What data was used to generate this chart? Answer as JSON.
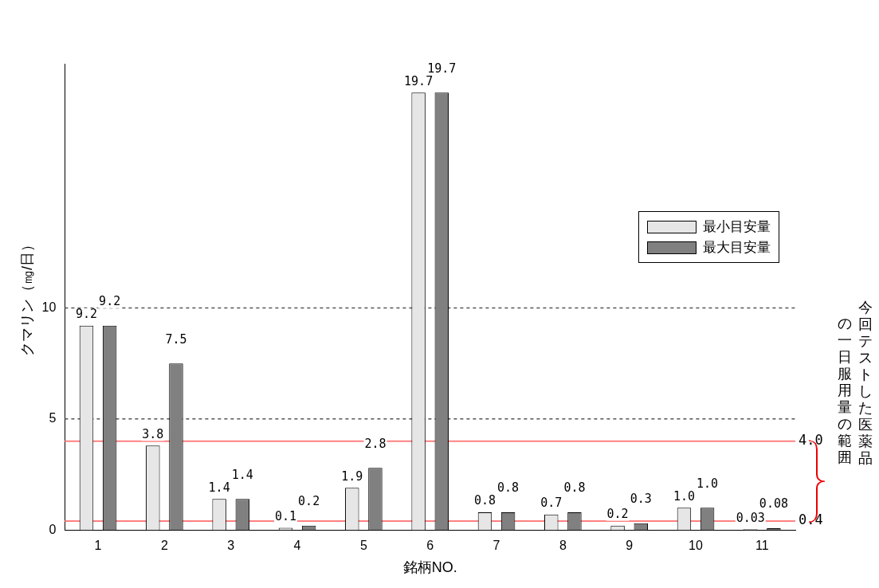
{
  "chart_data": {
    "type": "bar",
    "categories": [
      "1",
      "2",
      "3",
      "4",
      "5",
      "6",
      "7",
      "8",
      "9",
      "10",
      "11"
    ],
    "series": [
      {
        "name": "最小目安量",
        "color": "#e6e6e6",
        "values": [
          9.2,
          3.8,
          1.4,
          0.1,
          1.9,
          19.7,
          0.8,
          0.7,
          0.2,
          1.0,
          0.03
        ],
        "value_labels": [
          "9.2",
          "3.8",
          "1.4",
          "0.1",
          "1.9",
          "19.7",
          "0.8",
          "0.7",
          "0.2",
          "1.0",
          "0.03"
        ]
      },
      {
        "name": "最大目安量",
        "color": "#808080",
        "values": [
          9.2,
          7.5,
          1.4,
          0.2,
          2.8,
          19.7,
          0.8,
          0.8,
          0.3,
          1.0,
          0.08
        ],
        "value_labels": [
          "9.2",
          "7.5",
          "1.4",
          "0.2",
          "2.8",
          "19.7",
          "0.8",
          "0.8",
          "0.3",
          "1.0",
          "0.08"
        ]
      }
    ],
    "xlabel": "銘柄NO.",
    "ylabel": "クマリン（㎎/日）",
    "ylim": [
      0,
      21
    ],
    "yticks": [
      0,
      5,
      10
    ],
    "grid": "y",
    "legend": "right",
    "ref_lines": [
      {
        "axis": "y",
        "value": 4.0,
        "label": "4.0",
        "color": "#ff8080"
      },
      {
        "axis": "y",
        "value": 0.4,
        "label": "0.4",
        "color": "#ff8080"
      }
    ],
    "annotations": [
      "今回テストした医薬品",
      "の一日服用量の範囲"
    ]
  }
}
